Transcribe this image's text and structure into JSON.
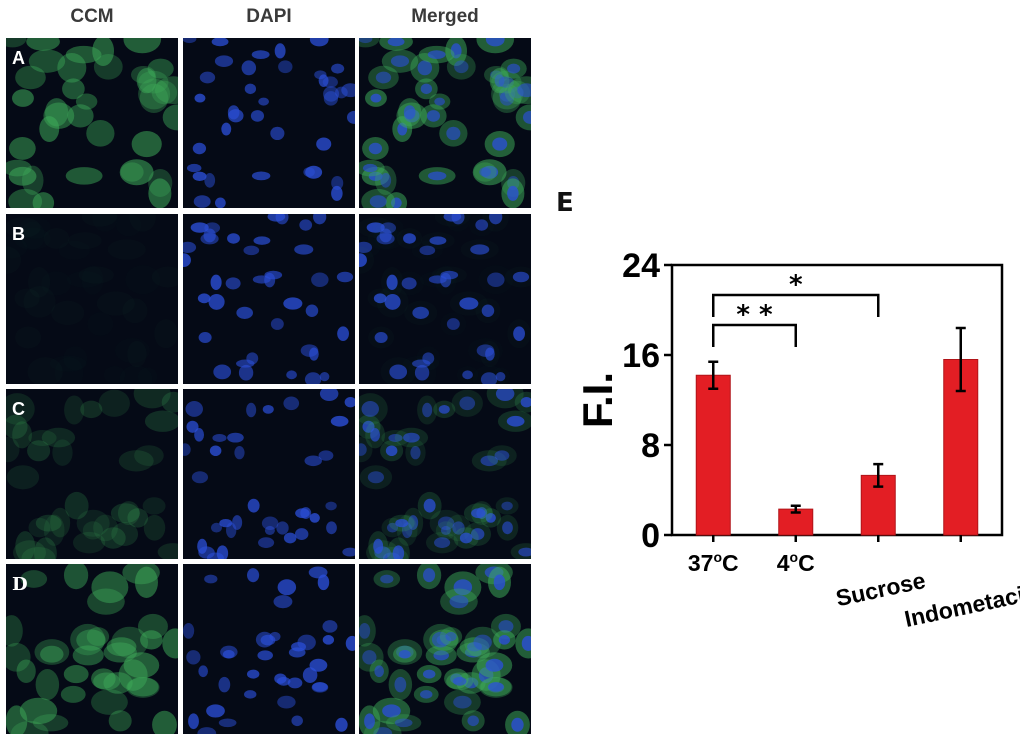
{
  "columns": [
    "CCM",
    "DAPI",
    "Merged"
  ],
  "rows": [
    {
      "label": "A",
      "green_level": 0.85
    },
    {
      "label": "B",
      "green_level": 0.05
    },
    {
      "label": "C",
      "green_level": 0.35
    },
    {
      "label": "D",
      "green_level": 0.8
    }
  ],
  "colors": {
    "green": "#3fae5a",
    "blue": "#2b4fd9",
    "panel_bg": "#050a16",
    "bar": "#e31e24"
  },
  "chart_panel_label": "E",
  "chart_data": {
    "type": "bar",
    "categories": [
      "37°C",
      "4°C",
      "Sucrose",
      "Indometacin"
    ],
    "tick_labels": [
      {
        "main": "37",
        "sup": "o",
        "tail": "C"
      },
      {
        "main": "4",
        "sup": "o",
        "tail": "C"
      },
      {
        "main": "Sucrose",
        "sup": "",
        "tail": ""
      },
      {
        "main": "Indometacin",
        "sup": "",
        "tail": ""
      }
    ],
    "values": [
      14.2,
      2.3,
      5.3,
      15.6
    ],
    "errors": [
      1.2,
      0.3,
      1.0,
      2.8
    ],
    "ylabel": "F.I.",
    "xlabel": "",
    "ylim": [
      0,
      24
    ],
    "yticks": [
      "0",
      "8",
      "16",
      "24"
    ],
    "significance": [
      {
        "from": 0,
        "to": 2,
        "label": "*"
      },
      {
        "from": 0,
        "to": 1,
        "label": "* *"
      }
    ]
  }
}
